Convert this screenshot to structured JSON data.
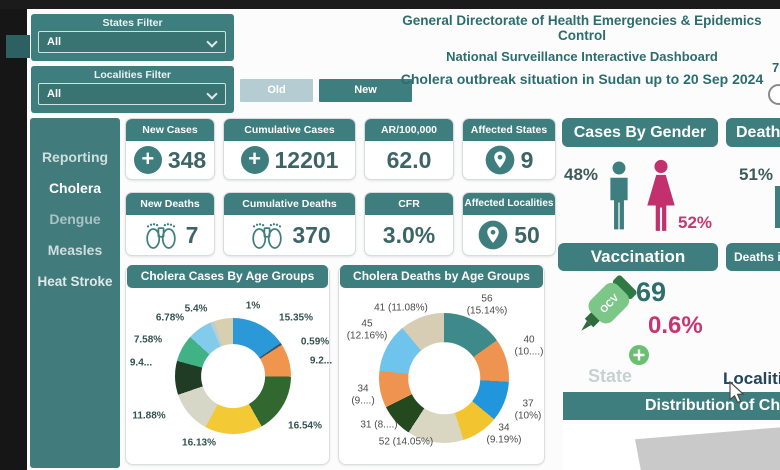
{
  "header": {
    "title_line1": "General Directorate of Health Emergencies &  Epidemics Control",
    "title_line2": "National Surveillance Interactive Dashboard",
    "title_line3": "Cholera  outbreak situation in Sudan up to 20  Sep 2024",
    "partial_right_text": "7"
  },
  "filters": {
    "states": {
      "label": "States Filter",
      "value": "All"
    },
    "localities": {
      "label": "Localities Filter",
      "value": "All"
    }
  },
  "view_buttons": {
    "old": "Old",
    "new": "New"
  },
  "sidebar": {
    "items": [
      {
        "label": "Reporting",
        "active": false
      },
      {
        "label": "Cholera",
        "active": true
      },
      {
        "label": "Dengue",
        "active": false
      },
      {
        "label": "Measles",
        "active": false
      },
      {
        "label": "Heat Stroke",
        "active": false
      }
    ]
  },
  "kpis": [
    {
      "label": "New Cases",
      "value": "348",
      "icon": "plus-circle"
    },
    {
      "label": "Cumulative Cases",
      "value": "12201",
      "icon": "plus-circle"
    },
    {
      "label": "AR/100,000",
      "value": "62.0",
      "icon": "none"
    },
    {
      "label": "Affected States",
      "value": "9",
      "icon": "location-pin"
    },
    {
      "label": "New Deaths",
      "value": "7",
      "icon": "feet-tag"
    },
    {
      "label": "Cumulative Deaths",
      "value": "370",
      "icon": "feet-tag"
    },
    {
      "label": "CFR",
      "value": "3.0%",
      "icon": "none"
    },
    {
      "label": "Affected Localities",
      "value": "50",
      "icon": "location-pin"
    }
  ],
  "gender_cases": {
    "title": "Cases By Gender",
    "male_pct": "48%",
    "female_pct": "52%"
  },
  "gender_deaths_partial": {
    "title": "Death",
    "male_pct": "51%"
  },
  "vaccination": {
    "title": "Vaccination",
    "count": "69",
    "coverage_pct": "0.6%",
    "bottle_label": "OCV"
  },
  "deaths_in_partial": {
    "title": "Deaths i"
  },
  "map_toggle": {
    "state": "State",
    "localities_partial": "Localiti"
  },
  "distribution": {
    "title_partial": "Distribution of Ch"
  },
  "accent_colors": {
    "teal": "#3f7e7e",
    "pink": "#c53571",
    "dark_text": "#2b6d6f"
  },
  "chart_data": [
    {
      "type": "pie",
      "title": "Cholera Cases By Age Groups",
      "legend_position": "none",
      "labels": [
        "15.35%",
        "0.59%",
        "9.2...",
        "16.54%",
        "16.13%",
        "11.88%",
        "9.4...",
        "7.58%",
        "6.78%",
        "1%",
        "5.4%"
      ],
      "pcts": [
        15.35,
        0.59,
        9.27,
        16.54,
        16.13,
        11.88,
        9.43,
        7.58,
        6.78,
        1.05,
        5.4
      ],
      "colors": [
        "#2b99d8",
        "#41505a",
        "#f0954e",
        "#31682f",
        "#f3c936",
        "#d7d7c8",
        "#203c25",
        "#41b286",
        "#83cbea",
        "#b9cdd6",
        "#d8cfae"
      ]
    },
    {
      "type": "pie",
      "title": "Cholera Deaths by Age Groups",
      "legend_position": "none",
      "labels": [
        "56\n(15.14%)",
        "40\n(10....)",
        "37\n(10%)",
        "34\n(9.19%)",
        "52 (14.05%)",
        "31 (8....)",
        "34\n(9....)",
        "45\n(12.16%)",
        "41 (11.08%)"
      ],
      "values": [
        56,
        40,
        37,
        34,
        52,
        31,
        34,
        45,
        41
      ],
      "pcts": [
        15.14,
        10.81,
        10.0,
        9.19,
        14.05,
        8.38,
        9.19,
        12.16,
        11.08
      ],
      "colors": [
        "#3e8a8a",
        "#ef9350",
        "#2196dd",
        "#f2c530",
        "#d9d6c2",
        "#24491f",
        "#ef9350",
        "#6ec4ed",
        "#d6cdb4"
      ]
    }
  ]
}
